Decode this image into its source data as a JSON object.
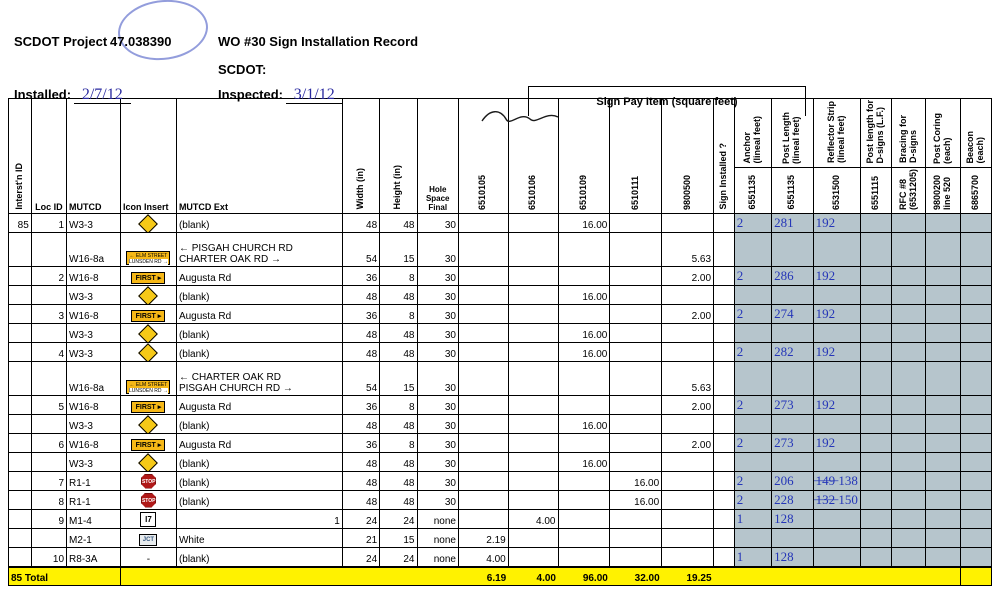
{
  "header": {
    "project_label": "SCDOT Project",
    "project_no": "47.038390",
    "wo_label": "WO #30 Sign Installation Record",
    "installed_label": "Installed:",
    "installed_value": "2/7/12",
    "scdot_label": "SCDOT:",
    "inspected_label": "Inspected:",
    "inspected_value": "3/1/12",
    "pay_region": "Sign Pay Item (square feet)"
  },
  "super_headers": {
    "anchor": "Anchor\n(lineal feet)",
    "post_len": "Post Length\n(lineal feet)",
    "refl": "Reflector Strip\n(lineal feet)",
    "post_d": "Post length for\nD-signs (L.F.)",
    "brace": "Bracing for\nD-signs",
    "coring": "Post Coring\n(each)",
    "beacon": "Beacon\n(each)"
  },
  "col": {
    "intersect": "Interst'n ID",
    "loc": "Loc ID",
    "mutcd": "MUTCD",
    "iconins": "Icon Insert",
    "mutcdext": "MUTCD Ext",
    "width": "Width (in)",
    "height": "Height (in)",
    "hole": "Hole\nSpace\nFinal",
    "c6510105": "6510105",
    "c6510106": "6510106",
    "c6510109": "6510109",
    "c6510111": "6510111",
    "c9800500": "9800500",
    "signinst": "Sign Installed ?",
    "c6551135a": "6551135",
    "c6551135b": "6551135",
    "c6531500": "6531500",
    "c6551115": "6551115",
    "rfc8": "RFC #8\n(6531205)",
    "c9800200": "9800200\nline 520",
    "c6865700": "6865700"
  },
  "rows": [
    {
      "grp": "85",
      "loc": "1",
      "mutcd": "W3-3",
      "icon": "diamond",
      "ext": "(blank)",
      "w": "48",
      "h": "48",
      "hole": "30",
      "p105": "",
      "p106": "",
      "p109": "16.00",
      "p111": "",
      "p500": "",
      "a": "2",
      "b": "281",
      "c": "192"
    },
    {
      "grp": "",
      "loc": "",
      "mutcd": "W16-8a",
      "icon": "street",
      "ext": "← PISGAH CHURCH RD\nCHARTER OAK RD →",
      "w": "54",
      "h": "15",
      "hole": "30",
      "p105": "",
      "p106": "",
      "p109": "",
      "p111": "",
      "p500": "5.63",
      "a": "",
      "b": "",
      "c": ""
    },
    {
      "grp": "",
      "loc": "2",
      "mutcd": "W16-8",
      "icon": "first",
      "ext": "Augusta Rd",
      "w": "36",
      "h": "8",
      "hole": "30",
      "p105": "",
      "p106": "",
      "p109": "",
      "p111": "",
      "p500": "2.00",
      "a": "2",
      "b": "286",
      "c": "192"
    },
    {
      "grp": "",
      "loc": "",
      "mutcd": "W3-3",
      "icon": "diamond",
      "ext": "(blank)",
      "w": "48",
      "h": "48",
      "hole": "30",
      "p105": "",
      "p106": "",
      "p109": "16.00",
      "p111": "",
      "p500": "",
      "a": "",
      "b": "",
      "c": ""
    },
    {
      "grp": "",
      "loc": "3",
      "mutcd": "W16-8",
      "icon": "first",
      "ext": "Augusta Rd",
      "w": "36",
      "h": "8",
      "hole": "30",
      "p105": "",
      "p106": "",
      "p109": "",
      "p111": "",
      "p500": "2.00",
      "a": "2",
      "b": "274",
      "c": "192"
    },
    {
      "grp": "",
      "loc": "",
      "mutcd": "W3-3",
      "icon": "diamond",
      "ext": "(blank)",
      "w": "48",
      "h": "48",
      "hole": "30",
      "p105": "",
      "p106": "",
      "p109": "16.00",
      "p111": "",
      "p500": "",
      "a": "",
      "b": "",
      "c": ""
    },
    {
      "grp": "",
      "loc": "4",
      "mutcd": "W3-3",
      "icon": "diamond",
      "ext": "(blank)",
      "w": "48",
      "h": "48",
      "hole": "30",
      "p105": "",
      "p106": "",
      "p109": "16.00",
      "p111": "",
      "p500": "",
      "a": "2",
      "b": "282",
      "c": "192"
    },
    {
      "grp": "",
      "loc": "",
      "mutcd": "W16-8a",
      "icon": "street",
      "ext": "← CHARTER OAK RD\nPISGAH CHURCH RD →",
      "w": "54",
      "h": "15",
      "hole": "30",
      "p105": "",
      "p106": "",
      "p109": "",
      "p111": "",
      "p500": "5.63",
      "a": "",
      "b": "",
      "c": ""
    },
    {
      "grp": "",
      "loc": "5",
      "mutcd": "W16-8",
      "icon": "first",
      "ext": "Augusta Rd",
      "w": "36",
      "h": "8",
      "hole": "30",
      "p105": "",
      "p106": "",
      "p109": "",
      "p111": "",
      "p500": "2.00",
      "a": "2",
      "b": "273",
      "c": "192"
    },
    {
      "grp": "",
      "loc": "",
      "mutcd": "W3-3",
      "icon": "diamond",
      "ext": "(blank)",
      "w": "48",
      "h": "48",
      "hole": "30",
      "p105": "",
      "p106": "",
      "p109": "16.00",
      "p111": "",
      "p500": "",
      "a": "",
      "b": "",
      "c": ""
    },
    {
      "grp": "",
      "loc": "6",
      "mutcd": "W16-8",
      "icon": "first",
      "ext": "Augusta Rd",
      "w": "36",
      "h": "8",
      "hole": "30",
      "p105": "",
      "p106": "",
      "p109": "",
      "p111": "",
      "p500": "2.00",
      "a": "2",
      "b": "273",
      "c": "192"
    },
    {
      "grp": "",
      "loc": "",
      "mutcd": "W3-3",
      "icon": "diamond",
      "ext": "(blank)",
      "w": "48",
      "h": "48",
      "hole": "30",
      "p105": "",
      "p106": "",
      "p109": "16.00",
      "p111": "",
      "p500": "",
      "a": "",
      "b": "",
      "c": ""
    },
    {
      "grp": "",
      "loc": "7",
      "mutcd": "R1-1",
      "icon": "stop",
      "ext": "(blank)",
      "w": "48",
      "h": "48",
      "hole": "30",
      "p105": "",
      "p106": "",
      "p109": "",
      "p111": "16.00",
      "p500": "",
      "a": "2",
      "b": "206",
      "c": "̶1̶4̶9̶ 138"
    },
    {
      "grp": "",
      "loc": "8",
      "mutcd": "R1-1",
      "icon": "stop",
      "ext": "(blank)",
      "w": "48",
      "h": "48",
      "hole": "30",
      "p105": "",
      "p106": "",
      "p109": "",
      "p111": "16.00",
      "p500": "",
      "a": "2",
      "b": "228",
      "c": "̶1̶3̶2̶ 150"
    },
    {
      "grp": "",
      "loc": "9",
      "mutcd": "M1-4",
      "icon": "i7",
      "ext": "1",
      "w": "24",
      "h": "24",
      "hole": "none",
      "p105": "",
      "p106": "4.00",
      "p109": "",
      "p111": "",
      "p500": "",
      "a": "1",
      "b": "128",
      "c": "",
      "ext_align": "right"
    },
    {
      "grp": "",
      "loc": "",
      "mutcd": "M2-1",
      "icon": "jct",
      "ext": "White",
      "w": "21",
      "h": "15",
      "hole": "none",
      "p105": "2.19",
      "p106": "",
      "p109": "",
      "p111": "",
      "p500": "",
      "a": "",
      "b": "",
      "c": ""
    },
    {
      "grp": "",
      "loc": "10",
      "mutcd": "R8-3A",
      "icon": "-",
      "ext": "(blank)",
      "w": "24",
      "h": "24",
      "hole": "none",
      "p105": "4.00",
      "p106": "",
      "p109": "",
      "p111": "",
      "p500": "",
      "a": "1",
      "b": "128",
      "c": ""
    }
  ],
  "total": {
    "label": "85 Total",
    "p105": "6.19",
    "p106": "4.00",
    "p109": "96.00",
    "p111": "32.00",
    "p500": "19.25"
  },
  "colors": {
    "shade": "#b6c5cc",
    "total_bg": "#fff200",
    "hand": "#2536b8",
    "sign_yellow": "#f6b817",
    "stop_red": "#b01918"
  }
}
